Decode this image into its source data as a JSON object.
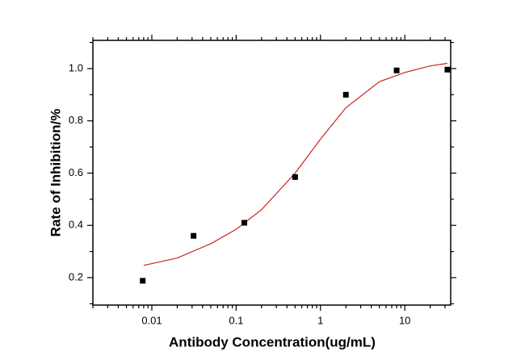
{
  "chart_data": {
    "type": "scatter",
    "xlabel": "Antibody Concentration(ug/mL)",
    "ylabel": "Rate of Inhibition/%",
    "xscale": "log",
    "xlim": [
      0.002,
      35
    ],
    "ylim": [
      0.095,
      1.108
    ],
    "xticks": [
      0.01,
      0.1,
      1,
      10
    ],
    "xminorticks": [
      0.002,
      0.003,
      0.004,
      0.005,
      0.006,
      0.007,
      0.008,
      0.009,
      0.02,
      0.03,
      0.04,
      0.05,
      0.06,
      0.07,
      0.08,
      0.09,
      0.2,
      0.3,
      0.4,
      0.5,
      0.6,
      0.7,
      0.8,
      0.9,
      2,
      3,
      4,
      5,
      6,
      7,
      8,
      9,
      20,
      30
    ],
    "yticks": [
      0.2,
      0.4,
      0.6,
      0.8,
      {
        "value": 1,
        "label": "1.0"
      }
    ],
    "yminorticks": [
      0.1,
      0.3,
      0.5,
      0.7,
      0.9,
      1.1
    ],
    "points": {
      "color": "#000000",
      "x": [
        0.0078,
        0.03125,
        0.125,
        0.5,
        2,
        8,
        32
      ],
      "values": [
        0.188,
        0.36,
        0.41,
        0.585,
        0.9,
        0.993,
        0.996
      ]
    },
    "fit": {
      "color": "#cc2222",
      "x": [
        0.008,
        0.02,
        0.05,
        0.1,
        0.2,
        0.5,
        1,
        2,
        5,
        10,
        20,
        32
      ],
      "values": [
        0.247,
        0.275,
        0.33,
        0.385,
        0.46,
        0.6,
        0.73,
        0.85,
        0.95,
        0.985,
        1.01,
        1.02
      ]
    }
  }
}
